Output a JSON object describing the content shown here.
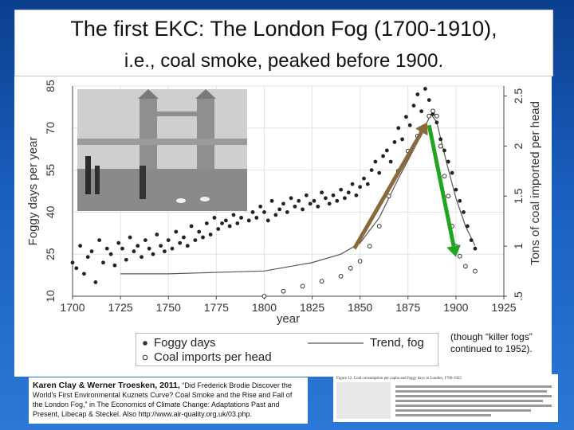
{
  "slide": {
    "title_line1": "The first EKC: The London Fog (1700-1910),",
    "title_line2": "i.e., coal smoke, peaked before 1900.",
    "note": "(though “killer fogs” continued to 1952).",
    "citation_authors": "Karen Clay & Werner Troesken, 2011,",
    "citation_rest": "“Did Frederick Brodie Discover the World’s First Environmental Kuznets Curve? Coal Smoke and the Rise and Fall of the London Fog,” in The Economics of Climate Change: Adaptations Past and Present, Libecap & Steckel.",
    "citation_url": "Also http://www.air-quality.org.uk/03.php.",
    "figure_caption": "Figure 12. Coal consumption per capita and foggy days in London, 1700-1925"
  },
  "chart_data": {
    "type": "scatter",
    "xlabel": "year",
    "ylabel_left": "Foggy days per year",
    "ylabel_right": "Tons of coal imported per head",
    "xlim": [
      1700,
      1925
    ],
    "ylim_left": [
      10,
      85
    ],
    "ylim_right": [
      0.5,
      2.6
    ],
    "x_ticks": [
      "1700",
      "1725",
      "1750",
      "1775",
      "1800",
      "1825",
      "1850",
      "1875",
      "1900",
      "1925"
    ],
    "y_ticks_left": [
      "10",
      "25",
      "40",
      "55",
      "70",
      "85"
    ],
    "y_ticks_right": [
      ".5",
      "1",
      "1.5",
      "2",
      "2.5"
    ],
    "legend": [
      "Foggy days",
      "Coal imports per head",
      "Trend, fog"
    ],
    "series": [
      {
        "name": "Foggy days",
        "marker": "filled-circle",
        "x": [
          1700,
          1702,
          1704,
          1706,
          1708,
          1710,
          1712,
          1714,
          1716,
          1718,
          1720,
          1722,
          1724,
          1726,
          1728,
          1730,
          1732,
          1734,
          1736,
          1738,
          1740,
          1742,
          1744,
          1746,
          1748,
          1750,
          1752,
          1754,
          1756,
          1758,
          1760,
          1762,
          1764,
          1766,
          1768,
          1770,
          1772,
          1774,
          1776,
          1778,
          1780,
          1782,
          1784,
          1786,
          1788,
          1790,
          1792,
          1794,
          1796,
          1798,
          1800,
          1802,
          1804,
          1806,
          1808,
          1810,
          1812,
          1814,
          1816,
          1818,
          1820,
          1822,
          1824,
          1826,
          1828,
          1830,
          1832,
          1834,
          1836,
          1838,
          1840,
          1842,
          1844,
          1846,
          1848,
          1850,
          1852,
          1854,
          1856,
          1858,
          1860,
          1862,
          1864,
          1866,
          1868,
          1870,
          1872,
          1874,
          1876,
          1878,
          1880,
          1882,
          1884,
          1886,
          1888,
          1890,
          1892,
          1894,
          1896,
          1898,
          1900,
          1902,
          1904,
          1906,
          1908,
          1910
        ],
        "y": [
          22,
          20,
          28,
          18,
          24,
          26,
          15,
          30,
          22,
          27,
          25,
          21,
          29,
          27,
          23,
          31,
          26,
          28,
          24,
          30,
          27,
          25,
          32,
          28,
          26,
          30,
          27,
          33,
          29,
          31,
          28,
          35,
          30,
          33,
          31,
          36,
          32,
          38,
          34,
          36,
          37,
          35,
          39,
          36,
          38,
          41,
          37,
          40,
          38,
          42,
          40,
          37,
          44,
          39,
          41,
          43,
          40,
          45,
          42,
          44,
          41,
          46,
          43,
          44,
          42,
          47,
          45,
          43,
          46,
          44,
          48,
          45,
          47,
          50,
          46,
          49,
          52,
          50,
          55,
          58,
          54,
          60,
          62,
          58,
          65,
          70,
          66,
          74,
          71,
          78,
          82,
          76,
          84,
          80,
          75,
          72,
          66,
          62,
          58,
          54,
          48,
          44,
          40,
          35,
          30,
          27
        ]
      },
      {
        "name": "Coal imports per head",
        "marker": "open-circle",
        "x": [
          1800,
          1810,
          1820,
          1830,
          1840,
          1845,
          1850,
          1855,
          1860,
          1865,
          1870,
          1875,
          1880,
          1882,
          1884,
          1886,
          1888,
          1890,
          1892,
          1894,
          1896,
          1898,
          1900,
          1902,
          1905,
          1910
        ],
        "y": [
          0.5,
          0.55,
          0.6,
          0.65,
          0.7,
          0.78,
          0.85,
          1.0,
          1.2,
          1.5,
          1.75,
          1.95,
          2.1,
          2.15,
          2.2,
          2.3,
          2.35,
          2.3,
          2.0,
          1.7,
          1.5,
          1.2,
          1.0,
          0.9,
          0.8,
          0.75
        ]
      },
      {
        "name": "Trend, fog",
        "marker": "line",
        "x": [
          1725,
          1750,
          1775,
          1800,
          1825,
          1840,
          1850,
          1860,
          1870,
          1880,
          1887,
          1890,
          1895,
          1900,
          1905,
          1910
        ],
        "y": [
          18,
          18,
          18.5,
          19,
          22,
          25,
          29,
          38,
          52,
          65,
          75,
          72,
          58,
          45,
          35,
          28
        ]
      }
    ],
    "annotations": [
      {
        "type": "arrow",
        "color": "#8a6a3c",
        "direction": "up",
        "from": [
          1847,
          27
        ],
        "to": [
          1885,
          72
        ]
      },
      {
        "type": "arrow",
        "color": "#1fa51f",
        "direction": "down",
        "from": [
          1886,
          71
        ],
        "to": [
          1900,
          24
        ]
      }
    ]
  }
}
